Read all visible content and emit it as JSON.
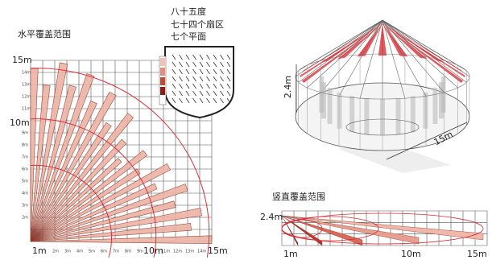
{
  "horizontal": {
    "title": "水平覆盖范围",
    "legend": [
      "八十五度",
      "七十四个扇区",
      "七个平面"
    ],
    "y_labels": {
      "major": [
        "15m",
        "10m"
      ],
      "minor": [
        "14m",
        "13m",
        "12m",
        "11m",
        "9m",
        "8m",
        "7m",
        "6m",
        "5m",
        "4m",
        "3m",
        "2m"
      ]
    },
    "x_labels": {
      "major": [
        "1m",
        "10m",
        "15m"
      ],
      "minor": [
        "2m",
        "3m",
        "4m",
        "5m",
        "6m",
        "7m",
        "8m",
        "9m",
        "11m",
        "12m",
        "13m",
        "14m"
      ]
    }
  },
  "dome": {
    "height_label": "2.4m",
    "range_label": "15m"
  },
  "vertical": {
    "title": "竖直覆盖范围",
    "height_label": "2.4m",
    "x_labels": [
      "1m",
      "10m",
      "15m"
    ]
  }
}
